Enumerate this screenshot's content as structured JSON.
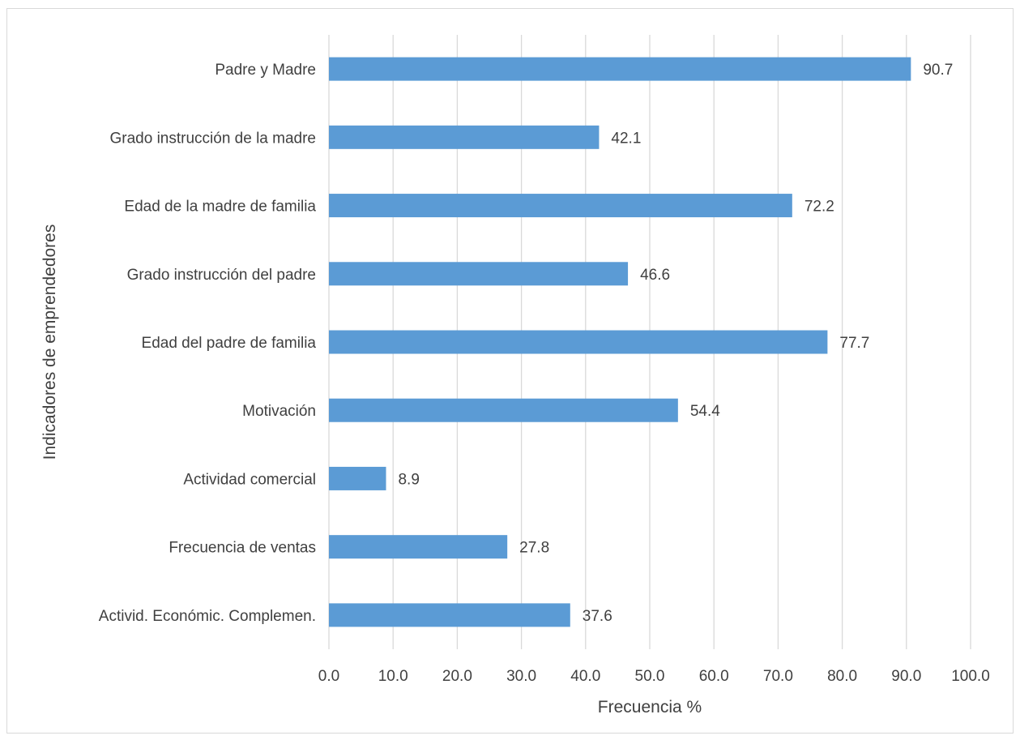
{
  "chart_data": {
    "type": "bar",
    "orientation": "horizontal",
    "title": "",
    "xlabel": "Frecuencia %",
    "ylabel": "Indicadores de emprendedores",
    "categories": [
      "Padre y Madre",
      "Grado instrucción de la madre",
      "Edad de la madre de familia",
      "Grado instrucción del padre",
      "Edad del padre de familia",
      "Motivación",
      "Actividad comercial",
      "Frecuencia de ventas",
      "Activid. Económic. Complemen."
    ],
    "values": [
      90.7,
      42.1,
      72.2,
      46.6,
      77.7,
      54.4,
      8.9,
      27.8,
      37.6
    ],
    "data_labels": [
      "90.7",
      "42.1",
      "72.2",
      "46.6",
      "77.7",
      "54.4",
      "8.9",
      "27.8",
      "37.6"
    ],
    "xlim": [
      0,
      100
    ],
    "x_ticks": [
      0,
      10,
      20,
      30,
      40,
      50,
      60,
      70,
      80,
      90,
      100
    ],
    "x_tick_labels": [
      "0.0",
      "10.0",
      "20.0",
      "30.0",
      "40.0",
      "50.0",
      "60.0",
      "70.0",
      "80.0",
      "90.0",
      "100.0"
    ],
    "grid": "vertical",
    "legend": "none",
    "colors": {
      "bar": "#5b9bd5",
      "grid": "#d9d9d9",
      "text": "#404040"
    }
  }
}
